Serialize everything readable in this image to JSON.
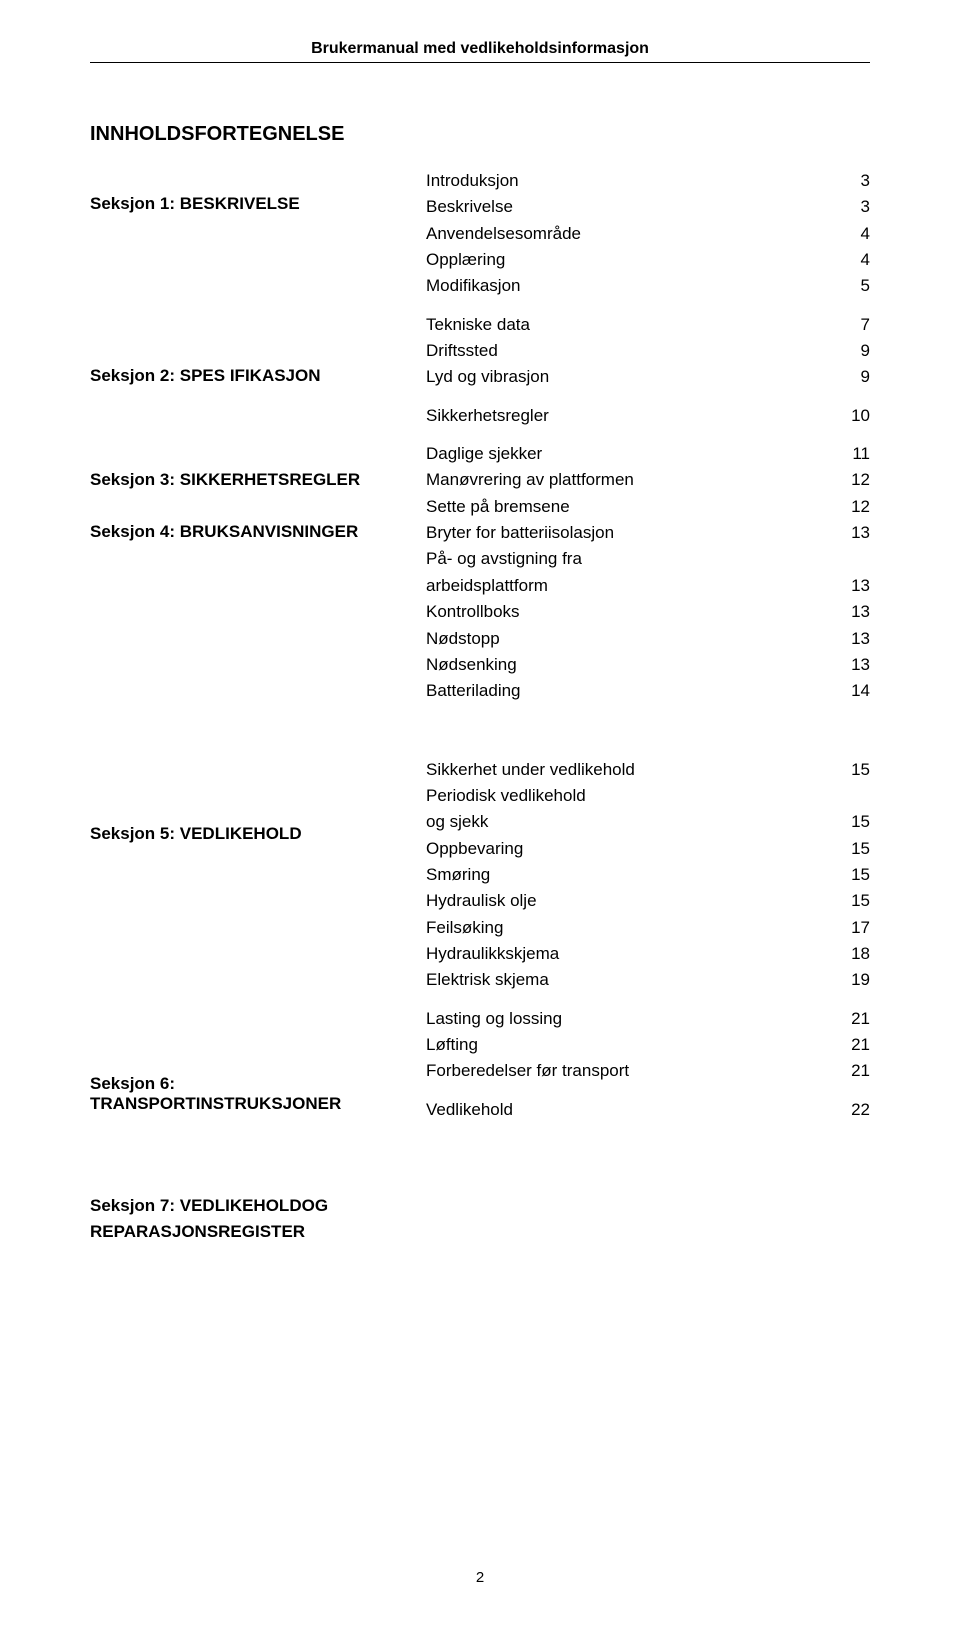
{
  "header": {
    "text": "Brukermanual      med vedlikeholdsinformasjon"
  },
  "title": "INNHOLDSFORTEGNELSE",
  "left": {
    "sec1": "Seksjon 1: BESKRIVELSE",
    "sec2": "Seksjon 2: SPES IFIKASJON",
    "sec3": "Seksjon 3: SIKKERHETSREGLER",
    "sec4": "Seksjon 4: BRUKSANVISNINGER",
    "sec5": "Seksjon 5: VEDLIKEHOLD",
    "sec6": "Seksjon 6: TRANSPORTINSTRUKSJONER",
    "sec7a": "Seksjon 7: VEDLIKEHOLDOG",
    "sec7b": "REPARASJONSREGISTER"
  },
  "toc": {
    "b1": [
      {
        "label": "Introduksjon",
        "page": "3"
      },
      {
        "label": "Beskrivelse",
        "page": "3"
      },
      {
        "label": "Anvendelsesområde",
        "page": "4"
      },
      {
        "label": "Opplæring",
        "page": "4"
      },
      {
        "label": "Modifikasjon",
        "page": "5"
      }
    ],
    "b2": [
      {
        "label": "Tekniske data",
        "page": "7"
      },
      {
        "label": "Driftssted",
        "page": "9"
      },
      {
        "label": "Lyd og vibrasjon",
        "page": "9"
      }
    ],
    "b3": [
      {
        "label": "Sikkerhetsregler",
        "page": "10"
      }
    ],
    "b4": [
      {
        "label": "Daglige sjekker",
        "page": "11"
      },
      {
        "label": "Manøvrering av plattformen",
        "page": "12"
      },
      {
        "label": "Sette på bremsene",
        "page": "12"
      },
      {
        "label": "Bryter for batteriisolasjon",
        "page": "13"
      },
      {
        "label": "På- og avstigning fra",
        "page": ""
      },
      {
        "label": "arbeidsplattform",
        "page": "13"
      },
      {
        "label": "Kontrollboks",
        "page": "13"
      },
      {
        "label": "Nødstopp",
        "page": "13"
      },
      {
        "label": "Nødsenking",
        "page": "13"
      },
      {
        "label": "Batterilading",
        "page": "14"
      }
    ],
    "b5": [
      {
        "label": "Sikkerhet under vedlikehold",
        "page": "15"
      },
      {
        "label": "Periodisk vedlikehold",
        "page": ""
      },
      {
        "label": "og sjekk",
        "page": "15"
      },
      {
        "label": "Oppbevaring",
        "page": "15"
      },
      {
        "label": "Smøring",
        "page": "15"
      },
      {
        "label": "Hydraulisk olje",
        "page": "15"
      },
      {
        "label": "Feilsøking",
        "page": "17"
      },
      {
        "label": "Hydraulikkskjema",
        "page": "18"
      },
      {
        "label": "Elektrisk skjema",
        "page": "19"
      }
    ],
    "b6": [
      {
        "label": "Lasting og lossing",
        "page": "21"
      },
      {
        "label": "Løfting",
        "page": "21"
      },
      {
        "label": "Forberedelser før transport",
        "page": "21"
      }
    ],
    "b7": [
      {
        "label": "Vedlikehold",
        "page": "22"
      }
    ]
  },
  "pageNumber": "2",
  "colors": {
    "text": "#000000",
    "background": "#ffffff",
    "rule": "#000000"
  },
  "fonts": {
    "family": "Arial, Helvetica, sans-serif",
    "header_size_pt": 12,
    "title_size_pt": 15,
    "section_size_pt": 13,
    "body_size_pt": 13
  }
}
